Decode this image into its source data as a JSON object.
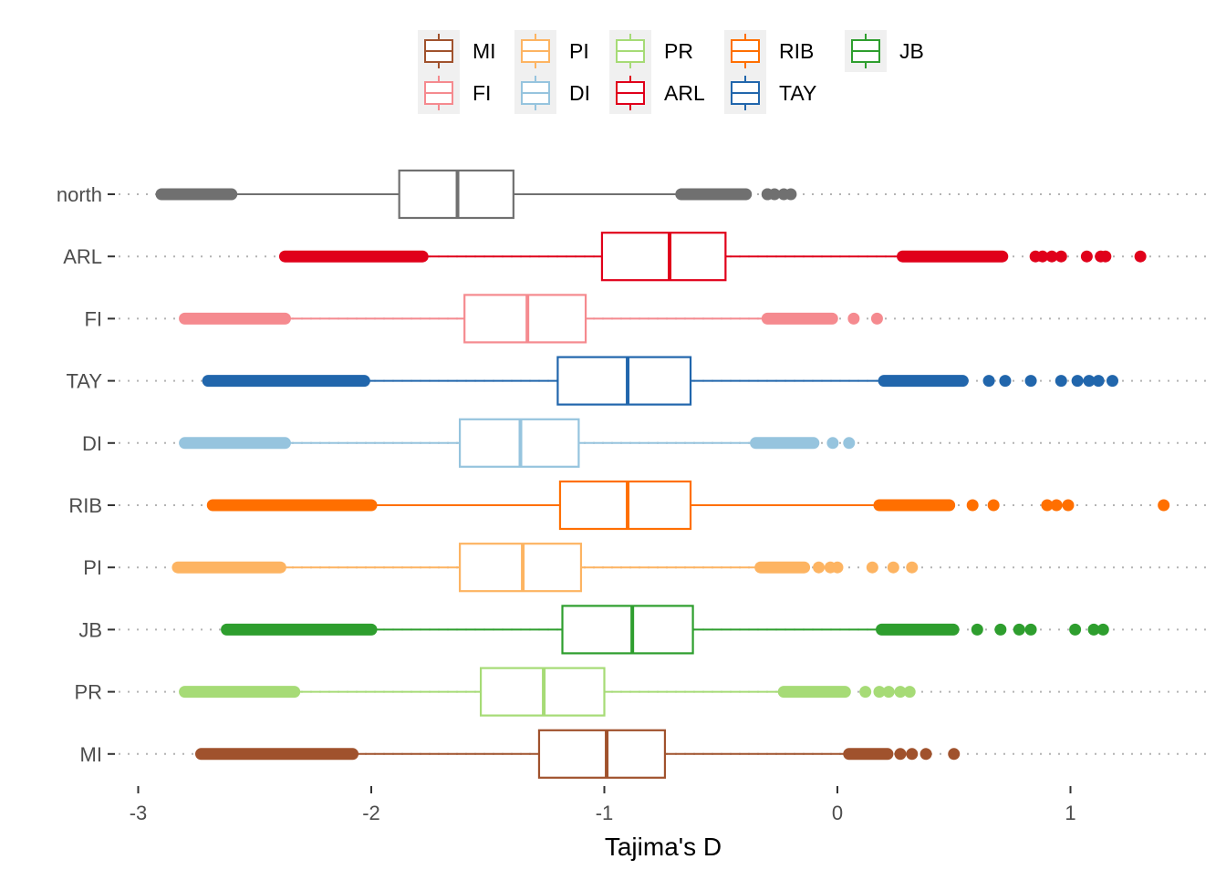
{
  "chart_data": {
    "type": "boxplot",
    "orientation": "horizontal",
    "xlabel": "Tajima's D",
    "ylabel": "",
    "xlim": [
      -3.1,
      1.6
    ],
    "x_ticks": [
      -3,
      -2,
      -1,
      0,
      1
    ],
    "x_tick_labels": [
      "-3",
      "-2",
      "-1",
      "0",
      "1"
    ],
    "grid": "dotted horizontal gridlines at each category",
    "legend": {
      "position": "top",
      "entries": [
        {
          "label": "MI",
          "color": "#A0522D"
        },
        {
          "label": "PI",
          "color": "#FDB462"
        },
        {
          "label": "PR",
          "color": "#A6DB76"
        },
        {
          "label": "RIB",
          "color": "#FF6F00"
        },
        {
          "label": "JB",
          "color": "#2E9E2E"
        },
        {
          "label": "FI",
          "color": "#F58A8F"
        },
        {
          "label": "DI",
          "color": "#96C4DE"
        },
        {
          "label": "ARL",
          "color": "#E0001A"
        },
        {
          "label": "TAY",
          "color": "#2166AC"
        }
      ]
    },
    "categories": [
      "north",
      "ARL",
      "FI",
      "TAY",
      "DI",
      "RIB",
      "PI",
      "JB",
      "PR",
      "MI"
    ],
    "series": [
      {
        "category": "north",
        "color": "#707070",
        "whisker_low": -2.6,
        "q1": -1.88,
        "median": -1.63,
        "q3": -1.39,
        "whisker_high": -0.67,
        "outliers_low": [
          -2.9,
          -2.6
        ],
        "outliers_high": [
          -0.67,
          -0.3,
          -0.3,
          -0.27,
          -0.23,
          -0.2
        ]
      },
      {
        "category": "ARL",
        "color": "#E0001A",
        "whisker_low": -1.78,
        "q1": -1.01,
        "median": -0.72,
        "q3": -0.48,
        "whisker_high": 0.28,
        "outliers_low": [
          -2.37,
          -1.78
        ],
        "outliers_high": [
          0.28,
          0.85,
          0.88,
          0.92,
          0.96,
          1.07,
          1.13,
          1.15,
          1.3
        ]
      },
      {
        "category": "FI",
        "color": "#F58A8F",
        "whisker_low": -2.37,
        "q1": -1.6,
        "median": -1.33,
        "q3": -1.08,
        "whisker_high": -0.3,
        "outliers_low": [
          -2.8,
          -2.37
        ],
        "outliers_high": [
          -0.3,
          0.07,
          0.17
        ]
      },
      {
        "category": "TAY",
        "color": "#2166AC",
        "whisker_low": -2.03,
        "q1": -1.2,
        "median": -0.9,
        "q3": -0.63,
        "whisker_high": 0.2,
        "outliers_low": [
          -2.7,
          -2.03
        ],
        "outliers_high": [
          0.2,
          0.65,
          0.72,
          0.83,
          0.96,
          1.03,
          1.08,
          1.12,
          1.18
        ]
      },
      {
        "category": "DI",
        "color": "#96C4DE",
        "whisker_low": -2.37,
        "q1": -1.62,
        "median": -1.36,
        "q3": -1.11,
        "whisker_high": -0.35,
        "outliers_low": [
          -2.8,
          -2.37
        ],
        "outliers_high": [
          -0.35,
          -0.02,
          0.05
        ]
      },
      {
        "category": "RIB",
        "color": "#FF6F00",
        "whisker_low": -2.0,
        "q1": -1.19,
        "median": -0.9,
        "q3": -0.63,
        "whisker_high": 0.18,
        "outliers_low": [
          -2.68,
          -2.0
        ],
        "outliers_high": [
          0.18,
          0.58,
          0.67,
          0.9,
          0.94,
          0.99,
          1.4
        ]
      },
      {
        "category": "PI",
        "color": "#FDB462",
        "whisker_low": -2.39,
        "q1": -1.62,
        "median": -1.35,
        "q3": -1.1,
        "whisker_high": -0.33,
        "outliers_low": [
          -2.83,
          -2.39
        ],
        "outliers_high": [
          -0.33,
          -0.08,
          -0.03,
          0.0,
          0.15,
          0.24,
          0.32
        ]
      },
      {
        "category": "JB",
        "color": "#2E9E2E",
        "whisker_low": -2.0,
        "q1": -1.18,
        "median": -0.88,
        "q3": -0.62,
        "whisker_high": 0.19,
        "outliers_low": [
          -2.62,
          -2.0
        ],
        "outliers_high": [
          0.19,
          0.6,
          0.7,
          0.78,
          0.83,
          1.02,
          1.1,
          1.14
        ]
      },
      {
        "category": "PR",
        "color": "#A6DB76",
        "whisker_low": -2.33,
        "q1": -1.53,
        "median": -1.26,
        "q3": -1.0,
        "whisker_high": -0.23,
        "outliers_low": [
          -2.8,
          -2.33
        ],
        "outliers_high": [
          -0.23,
          0.12,
          0.18,
          0.22,
          0.27,
          0.31
        ]
      },
      {
        "category": "MI",
        "color": "#A0522D",
        "whisker_low": -2.08,
        "q1": -1.28,
        "median": -0.99,
        "q3": -0.74,
        "whisker_high": 0.05,
        "outliers_low": [
          -2.73,
          -2.08
        ],
        "outliers_high": [
          0.05,
          0.27,
          0.32,
          0.38,
          0.5
        ]
      }
    ]
  }
}
